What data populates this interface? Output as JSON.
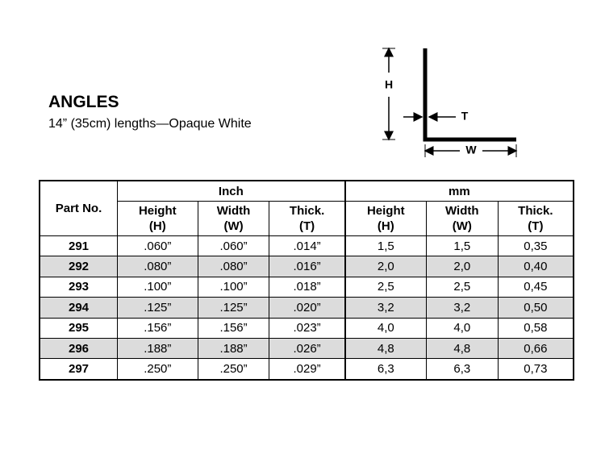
{
  "header": {
    "title": "ANGLES",
    "subtitle": "14” (35cm) lengths—Opaque White"
  },
  "diagram": {
    "height_label": "H",
    "thickness_label": "T",
    "width_label": "W"
  },
  "table": {
    "part_header": "Part No.",
    "groups": [
      "Inch",
      "mm"
    ],
    "columns": [
      [
        "Height",
        "(H)"
      ],
      [
        "Width",
        "(W)"
      ],
      [
        "Thick.",
        "(T)"
      ],
      [
        "Height",
        "(H)"
      ],
      [
        "Width",
        "(W)"
      ],
      [
        "Thick.",
        "(T)"
      ]
    ],
    "rows": [
      [
        "291",
        ".060”",
        ".060”",
        ".014”",
        "1,5",
        "1,5",
        "0,35"
      ],
      [
        "292",
        ".080”",
        ".080”",
        ".016”",
        "2,0",
        "2,0",
        "0,40"
      ],
      [
        "293",
        ".100”",
        ".100”",
        ".018”",
        "2,5",
        "2,5",
        "0,45"
      ],
      [
        "294",
        ".125”",
        ".125”",
        ".020”",
        "3,2",
        "3,2",
        "0,50"
      ],
      [
        "295",
        ".156”",
        ".156”",
        ".023”",
        "4,0",
        "4,0",
        "0,58"
      ],
      [
        "296",
        ".188”",
        ".188”",
        ".026”",
        "4,8",
        "4,8",
        "0,66"
      ],
      [
        "297",
        ".250”",
        ".250”",
        ".029”",
        "6,3",
        "6,3",
        "0,73"
      ]
    ]
  }
}
